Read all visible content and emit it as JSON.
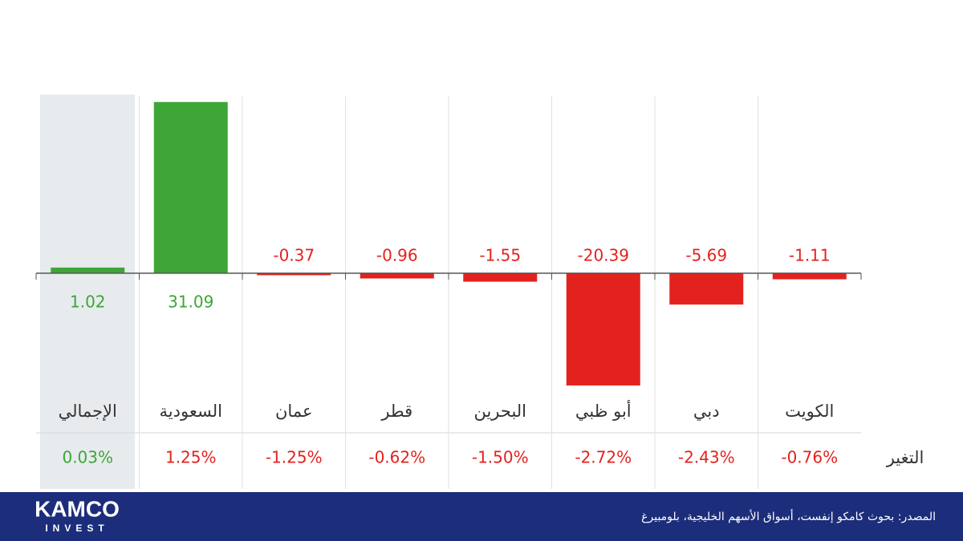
{
  "chart_data": {
    "type": "bar",
    "categories": [
      "الإجمالي",
      "السعودية",
      "عمان",
      "قطر",
      "البحرين",
      "أبو ظبي",
      "دبي",
      "الكويت"
    ],
    "values": [
      1.02,
      31.09,
      -0.37,
      -0.96,
      -1.55,
      -20.39,
      -5.69,
      -1.11
    ],
    "positive_color": "#3da637",
    "negative_color": "#e3221f",
    "ylim": [
      -22,
      32
    ],
    "change": {
      "label": "التغير",
      "values": [
        0.03,
        1.25,
        -1.25,
        -0.62,
        -1.5,
        -2.72,
        -2.43,
        -0.76
      ],
      "value_labels": [
        "0.03%",
        "1.25%",
        "-1.25%",
        "-0.62%",
        "-1.50%",
        "-2.72%",
        "-2.43%",
        "-0.76%"
      ],
      "colors": [
        "#3da637",
        "#e3221f",
        "#e3221f",
        "#e3221f",
        "#e3221f",
        "#e3221f",
        "#e3221f",
        "#e3221f"
      ]
    },
    "source": "المصدر: بحوث كامكو إنفست، أسواق الأسهم الخليجية، بلومبيرغ",
    "logo": {
      "name": "KAMCO",
      "subtitle": "INVEST"
    }
  }
}
